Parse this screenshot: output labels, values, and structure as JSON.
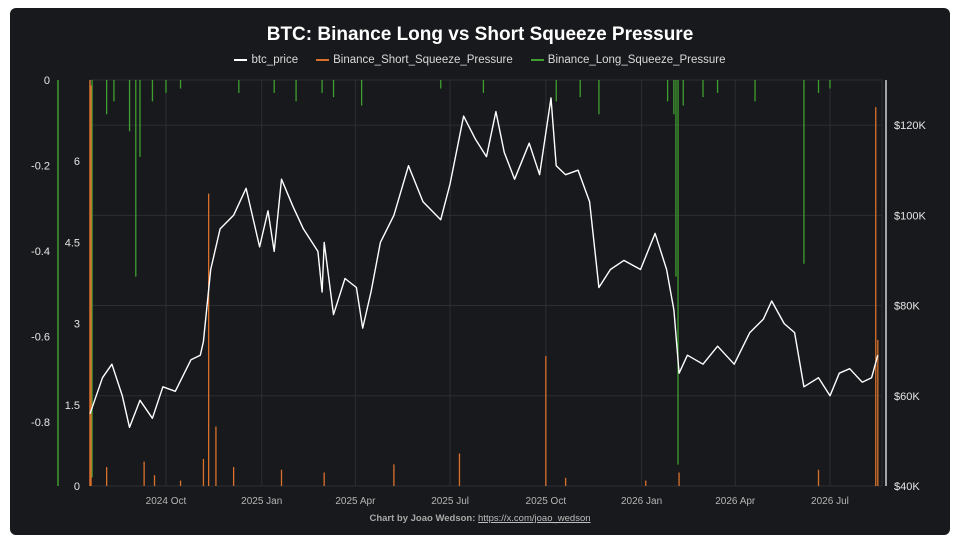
{
  "chart_data": {
    "type": "line",
    "title": "BTC: Binance Long vs Short Squeeze Pressure",
    "legend": {
      "placement": "top-center",
      "entries": [
        "btc_price",
        "Binance_Short_Squeeze_Pressure",
        "Binance_Long_Squeeze_Pressure"
      ]
    },
    "colors": {
      "btc_price": "#ffffff",
      "short": "#d9712c",
      "long": "#3f9e2f",
      "grid": "#2c2e33",
      "background": "#18191c"
    },
    "x_range": [
      "2024-07-20",
      "2026-08-20"
    ],
    "x_ticks": [
      "2024 Oct",
      "2025 Jan",
      "2025 Apr",
      "2025 Jul",
      "2025 Oct",
      "2026 Jan",
      "2026 Apr",
      "2026 Jul"
    ],
    "axes": {
      "long_axis": {
        "ticks": [
          "0",
          "-0.2",
          "-0.4",
          "-0.6",
          "-0.8"
        ],
        "ylim": [
          -0.95,
          0
        ]
      },
      "short_axis": {
        "ticks": [
          "0",
          "1.5",
          "3",
          "4.5",
          "6"
        ],
        "ylim": [
          0,
          7.5
        ]
      },
      "price_axis": {
        "ticks": [
          "$40K",
          "$60K",
          "$80K",
          "$100K",
          "$120K"
        ],
        "ylim": [
          40000,
          130000
        ]
      }
    },
    "series": [
      {
        "name": "btc_price",
        "axis": "price",
        "points": [
          [
            "2024-07-20",
            56000
          ],
          [
            "2024-08-01",
            64000
          ],
          [
            "2024-08-10",
            67000
          ],
          [
            "2024-08-20",
            60000
          ],
          [
            "2024-08-27",
            53000
          ],
          [
            "2024-09-06",
            59000
          ],
          [
            "2024-09-18",
            55000
          ],
          [
            "2024-09-28",
            62000
          ],
          [
            "2024-10-10",
            61000
          ],
          [
            "2024-10-25",
            68000
          ],
          [
            "2024-11-03",
            69000
          ],
          [
            "2024-11-06",
            72000
          ],
          [
            "2024-11-13",
            88000
          ],
          [
            "2024-11-22",
            97000
          ],
          [
            "2024-12-05",
            100000
          ],
          [
            "2024-12-17",
            106000
          ],
          [
            "2024-12-30",
            93000
          ],
          [
            "2025-01-07",
            101000
          ],
          [
            "2025-01-13",
            92000
          ],
          [
            "2025-01-20",
            108000
          ],
          [
            "2025-01-31",
            102000
          ],
          [
            "2025-02-10",
            97000
          ],
          [
            "2025-02-24",
            92000
          ],
          [
            "2025-02-28",
            83000
          ],
          [
            "2025-03-02",
            94000
          ],
          [
            "2025-03-11",
            78000
          ],
          [
            "2025-03-22",
            86000
          ],
          [
            "2025-04-02",
            84000
          ],
          [
            "2025-04-08",
            75000
          ],
          [
            "2025-04-16",
            83000
          ],
          [
            "2025-04-25",
            94000
          ],
          [
            "2025-05-08",
            100000
          ],
          [
            "2025-05-22",
            111000
          ],
          [
            "2025-06-05",
            103000
          ],
          [
            "2025-06-22",
            99000
          ],
          [
            "2025-07-01",
            107000
          ],
          [
            "2025-07-14",
            122000
          ],
          [
            "2025-07-25",
            117000
          ],
          [
            "2025-08-05",
            113000
          ],
          [
            "2025-08-14",
            123000
          ],
          [
            "2025-08-22",
            114000
          ],
          [
            "2025-09-01",
            108000
          ],
          [
            "2025-09-15",
            116000
          ],
          [
            "2025-09-25",
            109000
          ],
          [
            "2025-10-06",
            126000
          ],
          [
            "2025-10-11",
            111000
          ],
          [
            "2025-10-20",
            109000
          ],
          [
            "2025-11-01",
            110000
          ],
          [
            "2025-11-12",
            103000
          ],
          [
            "2025-11-21",
            84000
          ],
          [
            "2025-12-02",
            88000
          ],
          [
            "2025-12-15",
            90000
          ],
          [
            "2025-12-31",
            88000
          ],
          [
            "2026-01-14",
            96000
          ],
          [
            "2026-01-25",
            88000
          ],
          [
            "2026-02-01",
            79000
          ],
          [
            "2026-02-06",
            65000
          ],
          [
            "2026-02-14",
            69000
          ],
          [
            "2026-03-01",
            67000
          ],
          [
            "2026-03-15",
            71000
          ],
          [
            "2026-03-31",
            67000
          ],
          [
            "2026-04-15",
            74000
          ],
          [
            "2026-04-28",
            77000
          ],
          [
            "2026-05-06",
            81000
          ],
          [
            "2026-05-18",
            76000
          ],
          [
            "2026-05-28",
            74000
          ],
          [
            "2026-06-06",
            62000
          ],
          [
            "2026-06-20",
            64000
          ],
          [
            "2026-07-01",
            60000
          ],
          [
            "2026-07-10",
            65000
          ],
          [
            "2026-07-20",
            66000
          ],
          [
            "2026-08-01",
            63000
          ],
          [
            "2026-08-10",
            64000
          ],
          [
            "2026-08-16",
            69000
          ]
        ]
      },
      {
        "name": "Binance_Short_Squeeze_Pressure",
        "axis": "short",
        "points": [
          [
            "2024-07-21",
            7.4
          ],
          [
            "2024-08-05",
            0.35
          ],
          [
            "2024-09-10",
            0.45
          ],
          [
            "2024-09-20",
            0.2
          ],
          [
            "2024-10-15",
            0.1
          ],
          [
            "2024-11-06",
            0.5
          ],
          [
            "2024-11-11",
            5.4
          ],
          [
            "2024-11-18",
            1.1
          ],
          [
            "2024-12-05",
            0.35
          ],
          [
            "2025-01-20",
            0.3
          ],
          [
            "2025-03-02",
            0.25
          ],
          [
            "2025-05-08",
            0.4
          ],
          [
            "2025-07-10",
            0.6
          ],
          [
            "2025-10-01",
            2.4
          ],
          [
            "2025-10-20",
            0.15
          ],
          [
            "2026-01-05",
            0.1
          ],
          [
            "2026-02-06",
            0.25
          ],
          [
            "2026-06-20",
            0.3
          ],
          [
            "2026-08-14",
            7.0
          ],
          [
            "2026-08-16",
            2.7
          ]
        ]
      },
      {
        "name": "Binance_Long_Squeeze_Pressure",
        "axis": "long",
        "points": [
          [
            "2024-07-22",
            -0.93
          ],
          [
            "2024-08-05",
            -0.08
          ],
          [
            "2024-08-12",
            -0.05
          ],
          [
            "2024-08-27",
            -0.12
          ],
          [
            "2024-09-02",
            -0.46
          ],
          [
            "2024-09-06",
            -0.18
          ],
          [
            "2024-09-18",
            -0.05
          ],
          [
            "2024-10-01",
            -0.03
          ],
          [
            "2024-10-15",
            -0.02
          ],
          [
            "2024-12-10",
            -0.03
          ],
          [
            "2025-01-13",
            -0.03
          ],
          [
            "2025-02-03",
            -0.05
          ],
          [
            "2025-02-28",
            -0.03
          ],
          [
            "2025-03-11",
            -0.04
          ],
          [
            "2025-04-07",
            -0.06
          ],
          [
            "2025-06-22",
            -0.02
          ],
          [
            "2025-08-02",
            -0.03
          ],
          [
            "2025-10-11",
            -0.05
          ],
          [
            "2025-11-03",
            -0.04
          ],
          [
            "2025-11-21",
            -0.08
          ],
          [
            "2026-01-26",
            -0.05
          ],
          [
            "2026-02-01",
            -0.08
          ],
          [
            "2026-02-03",
            -0.46
          ],
          [
            "2026-02-05",
            -0.9
          ],
          [
            "2026-02-10",
            -0.06
          ],
          [
            "2026-03-01",
            -0.04
          ],
          [
            "2026-03-15",
            -0.03
          ],
          [
            "2026-04-20",
            -0.05
          ],
          [
            "2026-06-06",
            -0.43
          ],
          [
            "2026-06-20",
            -0.03
          ],
          [
            "2026-07-01",
            -0.02
          ]
        ]
      }
    ]
  },
  "footer": {
    "credit": "Chart by Joao Wedson:",
    "link": "https://x.com/joao_wedson"
  }
}
